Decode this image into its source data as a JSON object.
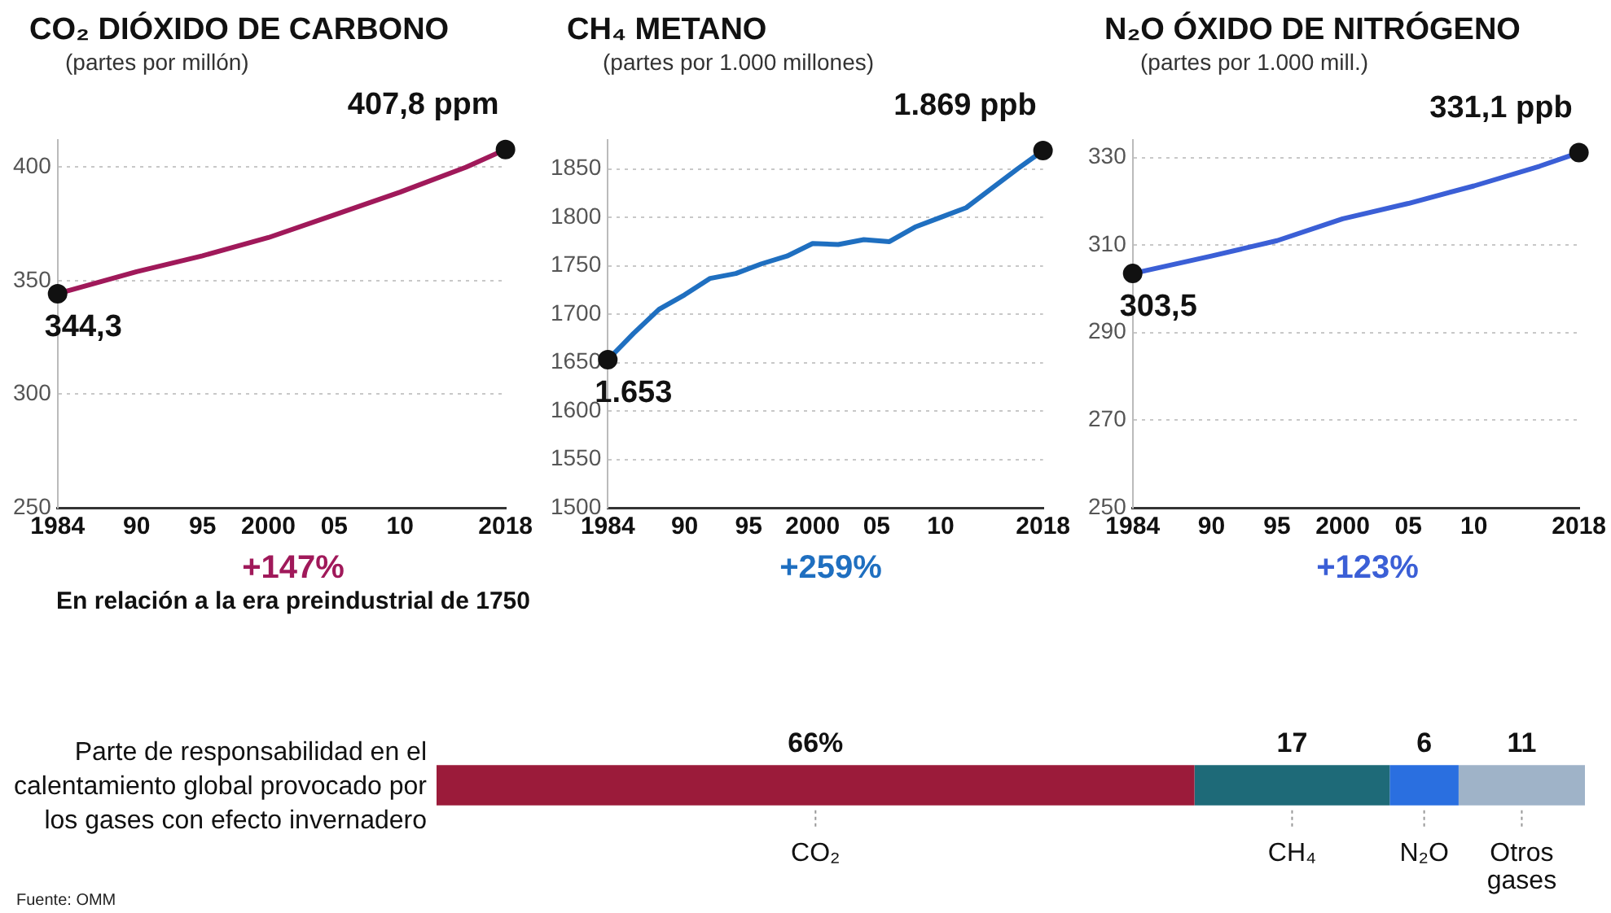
{
  "chart_data": [
    {
      "type": "line",
      "title": "CO₂ DIÓXIDO DE CARBONO",
      "subtitle": "(partes por millón)",
      "x": [
        1984,
        1990,
        1995,
        2000,
        2005,
        2010,
        2015,
        2018
      ],
      "series": [
        {
          "color": "#a0195a",
          "values": [
            344.3,
            354,
            361,
            369,
            379,
            389,
            400,
            407.8
          ],
          "value_labels": [
            "344,3",
            null,
            null,
            null,
            null,
            null,
            null,
            "407,8 ppm"
          ]
        }
      ],
      "xlim": [
        1984,
        2018
      ],
      "xticks": [
        1984,
        {
          "value": 1990,
          "label": "90"
        },
        {
          "value": 1995,
          "label": "95"
        },
        2000,
        {
          "value": 2005,
          "label": "05"
        },
        {
          "value": 2010,
          "label": "10"
        },
        2018
      ],
      "ylim": [
        250,
        412
      ],
      "yticks": [
        250,
        300,
        350,
        400
      ],
      "grid": "y",
      "marker": "none",
      "legend": false,
      "annotations": [
        "+147%",
        "En relación a la era preindustrial de 1750"
      ]
    },
    {
      "type": "line",
      "title": "CH₄ METANO",
      "subtitle": "(partes por 1.000 millones)",
      "x": [
        1984,
        1986,
        1988,
        1990,
        1992,
        1994,
        1996,
        1998,
        2000,
        2002,
        2004,
        2006,
        2008,
        2010,
        2012,
        2014,
        2016,
        2018
      ],
      "series": [
        {
          "color": "#1f6fc0",
          "values": [
            1653,
            1680,
            1705,
            1720,
            1737,
            1742,
            1752,
            1760,
            1773,
            1772,
            1777,
            1775,
            1790,
            1800,
            1810,
            1830,
            1850,
            1869
          ],
          "value_labels": [
            "1.653",
            null,
            null,
            null,
            null,
            null,
            null,
            null,
            null,
            null,
            null,
            null,
            null,
            null,
            null,
            null,
            null,
            "1.869 ppb"
          ]
        }
      ],
      "xlim": [
        1984,
        2018
      ],
      "xticks": [
        1984,
        {
          "value": 1990,
          "label": "90"
        },
        {
          "value": 1995,
          "label": "95"
        },
        2000,
        {
          "value": 2005,
          "label": "05"
        },
        {
          "value": 2010,
          "label": "10"
        },
        2018
      ],
      "ylim": [
        1500,
        1880
      ],
      "yticks": [
        1500,
        1550,
        1600,
        1650,
        1700,
        1750,
        1800,
        1850
      ],
      "grid": "y",
      "marker": "none",
      "legend": false,
      "annotations": [
        "+259%"
      ]
    },
    {
      "type": "line",
      "title": "N₂O ÓXIDO DE NITRÓGENO",
      "subtitle": "(partes por 1.000 mill.)",
      "x": [
        1984,
        1990,
        1995,
        2000,
        2005,
        2010,
        2015,
        2018
      ],
      "series": [
        {
          "color": "#3b5fd6",
          "values": [
            303.5,
            307.5,
            311,
            316,
            319.5,
            323.5,
            328,
            331.1
          ],
          "value_labels": [
            "303,5",
            null,
            null,
            null,
            null,
            null,
            null,
            "331,1 ppb"
          ]
        }
      ],
      "xlim": [
        1984,
        2018
      ],
      "xticks": [
        1984,
        {
          "value": 1990,
          "label": "90"
        },
        {
          "value": 1995,
          "label": "95"
        },
        2000,
        {
          "value": 2005,
          "label": "05"
        },
        {
          "value": 2010,
          "label": "10"
        },
        2018
      ],
      "ylim": [
        250,
        334
      ],
      "yticks": [
        250,
        270,
        290,
        310,
        330
      ],
      "grid": "y",
      "marker": "none",
      "legend": false,
      "annotations": [
        "+123%"
      ]
    },
    {
      "type": "bar",
      "orientation": "horizontal",
      "stacked": true,
      "title": "Parte de responsabilidad en el calentamiento global provocado por los gases con efecto invernadero",
      "categories": [
        null
      ],
      "xlim": [
        0,
        100
      ],
      "tick_labels": false,
      "grid": false,
      "legend": false,
      "series": [
        {
          "name": "CO₂",
          "color": "#9b1b3a",
          "values": [
            66
          ],
          "value_labels": [
            "66%"
          ]
        },
        {
          "name": "CH₄",
          "color": "#1e6a78",
          "values": [
            17
          ],
          "value_labels": [
            "17"
          ]
        },
        {
          "name": "N₂O",
          "color": "#2a6fe0",
          "values": [
            6
          ],
          "value_labels": [
            "6"
          ]
        },
        {
          "name": "Otros gases",
          "color": "#9fb3c8",
          "values": [
            11
          ],
          "value_labels": [
            "11"
          ]
        }
      ],
      "annotations": [
        "Fuente: OMM"
      ]
    }
  ]
}
